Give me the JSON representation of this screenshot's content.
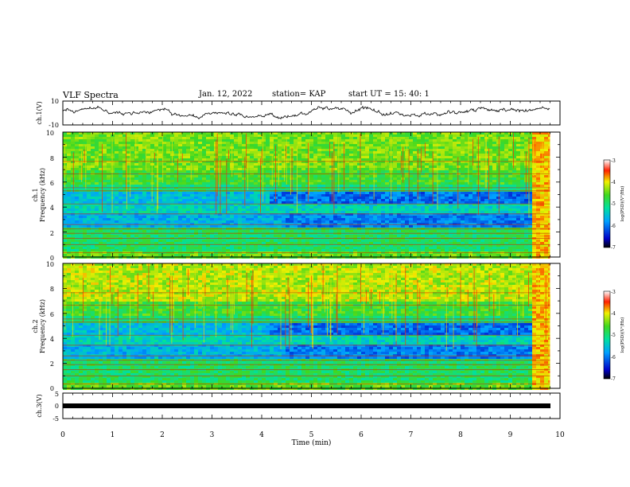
{
  "header": {
    "title": "VLF Spectra",
    "date": "Jan. 12, 2022",
    "station": "station= KAP",
    "start": "start  UT =   15: 40: 1"
  },
  "chart_data": [
    {
      "type": "line",
      "name": "ch1-waveform",
      "ylabel": "ch.1(V)",
      "ylim": [
        -10,
        10
      ],
      "yticks": [
        "10",
        "-10"
      ],
      "xlim": [
        0,
        10
      ]
    },
    {
      "type": "heatmap",
      "name": "ch1-spectrogram",
      "ylabel_top": "ch.1",
      "ylabel": "Frequency (kHz)",
      "ylim": [
        0,
        10
      ],
      "yticks": [
        "0",
        "2",
        "4",
        "6",
        "8",
        "10"
      ],
      "xlim": [
        0,
        10
      ],
      "data_end_min": 9.8,
      "colorbar": {
        "label": "log(PSD)(V²/Hz)",
        "range": [
          -7,
          -3
        ],
        "ticks": [
          "-3",
          "-4",
          "-5",
          "-6",
          "-7"
        ]
      }
    },
    {
      "type": "heatmap",
      "name": "ch2-spectrogram",
      "ylabel_top": "ch.2",
      "ylabel": "Frequency (kHz)",
      "ylim": [
        0,
        10
      ],
      "yticks": [
        "0",
        "2",
        "4",
        "6",
        "8",
        "10"
      ],
      "xlim": [
        0,
        10
      ],
      "data_end_min": 9.8,
      "colorbar": {
        "label": "log(PSD)(V²/Hz)",
        "range": [
          -7,
          -3
        ],
        "ticks": [
          "-3",
          "-4",
          "-5",
          "-6",
          "-7"
        ]
      }
    },
    {
      "type": "line",
      "name": "ch3-waveform",
      "ylabel": "ch.3(V)",
      "ylim": [
        -5,
        5
      ],
      "yticks": [
        "5",
        "0",
        "-5"
      ],
      "xlim": [
        0,
        10
      ]
    }
  ],
  "xaxis": {
    "label": "Time (min)",
    "ticks": [
      "0",
      "1",
      "2",
      "3",
      "4",
      "5",
      "6",
      "7",
      "8",
      "9",
      "10"
    ]
  }
}
